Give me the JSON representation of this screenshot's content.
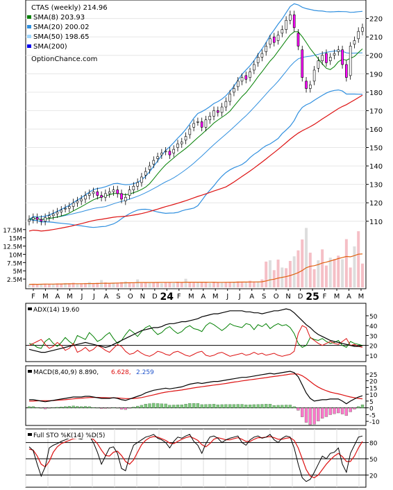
{
  "legend": {
    "title": "CTAS (weekly) 214.96",
    "sma8": "SMA(8) 203.93",
    "sma20": "SMA(20) 200.02",
    "sma50": "SMA(50) 198.65",
    "sma200": "SMA(200)",
    "brand": "OptionChance.com"
  },
  "colors": {
    "sma8": "#007f00",
    "sma20": "#2f8fdf",
    "sma50": "#9fd6ff",
    "sma200": "#0000ee",
    "bollinger": "#2f8fdf",
    "bollinger_mid": "#ffe400",
    "long_ma": "#dd1111",
    "up": "#000000",
    "down_fill": "#ff00ff",
    "up_fill": "#ffff00",
    "volume": "#f4b8c0",
    "volume_ma": "#e06010",
    "adx": "#000000",
    "di_plus": "#007f00",
    "di_minus": "#dd1111",
    "macd": "#000000",
    "signal": "#dd1111",
    "hist_pos": "#7fc77f",
    "hist_neg": "#ff77cc",
    "sto_k": "#000000",
    "sto_d": "#dd1111"
  },
  "panels": {
    "adx_label": "ADX(14) 19.60",
    "macd_label": "MACD(8,40,9) 8.890,",
    "macd_val2": "6.628,",
    "macd_val3": "2.259",
    "sto_label": "Full STO %K(14) %D(5)"
  },
  "chart_data": {
    "type": "candlestick",
    "price_ticks": [
      "110",
      "120",
      "130",
      "140",
      "150",
      "160",
      "170",
      "180",
      "190",
      "200",
      "210",
      "220"
    ],
    "volume_ticks": [
      "2.5M",
      "5M",
      "7.5M",
      "10M",
      "12.5M",
      "15M",
      "17.5M"
    ],
    "month_labels": [
      "F",
      "M",
      "A",
      "M",
      "J",
      "J",
      "A",
      "S",
      "O",
      "N",
      "D",
      "24",
      "F",
      "M",
      "A",
      "M",
      "J",
      "J",
      "A",
      "S",
      "O",
      "N",
      "D",
      "25",
      "F",
      "M",
      "A",
      "M"
    ],
    "adx_ticks": [
      "10",
      "20",
      "30",
      "40",
      "50"
    ],
    "macd_ticks": [
      "-10",
      "-5",
      "0",
      "5",
      "10",
      "15",
      "20",
      "25"
    ],
    "sto_ticks": [
      "20",
      "50",
      "80"
    ],
    "ylim": [
      102,
      227
    ],
    "close": [
      111,
      112,
      111,
      110,
      112,
      113,
      114,
      115,
      116,
      117,
      118,
      120,
      121,
      122,
      124,
      125,
      126,
      124,
      123,
      125,
      126,
      127,
      125,
      122,
      123,
      127,
      129,
      131,
      134,
      137,
      140,
      143,
      145,
      147,
      148,
      146,
      149,
      152,
      153,
      156,
      160,
      163,
      164,
      161,
      165,
      167,
      170,
      169,
      172,
      175,
      179,
      182,
      186,
      188,
      187,
      191,
      195,
      199,
      201,
      205,
      209,
      207,
      211,
      214,
      219,
      222,
      215,
      205,
      188,
      182,
      184,
      192,
      197,
      200,
      196,
      199,
      201,
      203,
      195,
      188,
      205,
      208,
      213,
      215
    ],
    "open": [
      110,
      111,
      112,
      111,
      110,
      112,
      113,
      114,
      115,
      117,
      117,
      118,
      120,
      121,
      122,
      124,
      125,
      126,
      124,
      123,
      125,
      126,
      127,
      125,
      121,
      124,
      127,
      129,
      131,
      135,
      138,
      141,
      144,
      146,
      148,
      148,
      147,
      150,
      152,
      154,
      157,
      161,
      164,
      164,
      161,
      165,
      167,
      170,
      169,
      172,
      175,
      180,
      183,
      186,
      189,
      188,
      192,
      196,
      199,
      202,
      206,
      210,
      208,
      212,
      214,
      219,
      222,
      212,
      203,
      186,
      182,
      186,
      193,
      197,
      201,
      197,
      200,
      202,
      203,
      195,
      189,
      206,
      209,
      213
    ],
    "volume": [
      0.9,
      1.0,
      0.9,
      1.0,
      1.1,
      1.0,
      1.0,
      1.2,
      1.1,
      1.3,
      1.2,
      1.4,
      1.1,
      1.2,
      1.3,
      1.6,
      1.2,
      1.4,
      2.2,
      1.5,
      1.3,
      1.4,
      1.4,
      1.6,
      1.8,
      1.5,
      1.2,
      2.4,
      1.3,
      1.4,
      1.3,
      1.5,
      1.4,
      1.2,
      1.5,
      1.6,
      1.3,
      1.7,
      1.6,
      2.6,
      1.5,
      1.4,
      1.5,
      1.6,
      1.5,
      1.3,
      1.5,
      1.6,
      1.4,
      1.5,
      1.7,
      1.6,
      1.8,
      1.6,
      1.5,
      2.0,
      1.7,
      1.8,
      2.4,
      7.8,
      8.2,
      5.2,
      8.4,
      6.0,
      5.8,
      8.0,
      9.4,
      11.2,
      14.5,
      18.0,
      10.5,
      5.5,
      8.2,
      11.5,
      6.6,
      9.0,
      8.6,
      9.6,
      8.5,
      14.6,
      6.0,
      12.4,
      17.0,
      7.2
    ],
    "adx": [
      16,
      15,
      14,
      13,
      13,
      14,
      15,
      16,
      17,
      18,
      19,
      20,
      21,
      22,
      23,
      22,
      21,
      20,
      19,
      18,
      19,
      21,
      23,
      25,
      27,
      29,
      31,
      33,
      35,
      36,
      37,
      38,
      38,
      39,
      41,
      42,
      42,
      43,
      44,
      44,
      45,
      46,
      47,
      49,
      50,
      51,
      52,
      52,
      53,
      54,
      55,
      55,
      55,
      55,
      54,
      54,
      53,
      53,
      52,
      53,
      54,
      55,
      55,
      56,
      57,
      56,
      53,
      49,
      45,
      41,
      38,
      34,
      31,
      29,
      27,
      25,
      24,
      23,
      22,
      21,
      20,
      19,
      19,
      19.6
    ],
    "di_plus": [
      22,
      21,
      18,
      17,
      24,
      27,
      22,
      19,
      23,
      28,
      24,
      21,
      30,
      28,
      26,
      33,
      29,
      24,
      26,
      30,
      33,
      27,
      22,
      25,
      31,
      36,
      33,
      29,
      34,
      38,
      40,
      35,
      31,
      33,
      37,
      39,
      35,
      32,
      34,
      38,
      40,
      37,
      36,
      34,
      40,
      43,
      41,
      38,
      35,
      38,
      42,
      40,
      39,
      38,
      42,
      41,
      36,
      41,
      39,
      42,
      37,
      40,
      42,
      40,
      41,
      38,
      32,
      22,
      18,
      20,
      28,
      26,
      25,
      27,
      24,
      22,
      23,
      25,
      20,
      18,
      24,
      22,
      21,
      20
    ],
    "di_minus": [
      20,
      22,
      24,
      26,
      21,
      17,
      19,
      23,
      20,
      15,
      17,
      22,
      13,
      15,
      18,
      14,
      16,
      20,
      18,
      15,
      13,
      17,
      21,
      19,
      14,
      11,
      12,
      15,
      12,
      10,
      9,
      11,
      14,
      13,
      11,
      10,
      13,
      14,
      12,
      10,
      9,
      11,
      13,
      14,
      10,
      9,
      10,
      12,
      13,
      11,
      9,
      10,
      11,
      12,
      10,
      11,
      13,
      11,
      12,
      10,
      11,
      12,
      10,
      9,
      10,
      11,
      14,
      32,
      40,
      38,
      28,
      25,
      22,
      20,
      22,
      24,
      22,
      21,
      24,
      27,
      20,
      21,
      19,
      18
    ],
    "macd": [
      6,
      6,
      5.5,
      5,
      4.5,
      5,
      5.5,
      6,
      6.5,
      7,
      7.5,
      8,
      8,
      8,
      8.5,
      8.5,
      8,
      7.5,
      7,
      7,
      7,
      7.5,
      7,
      6,
      5.5,
      6.5,
      7.5,
      8.5,
      9.5,
      11,
      12,
      13,
      13.5,
      14,
      14.5,
      14,
      14.5,
      15,
      15.5,
      16.5,
      17.5,
      18,
      18.5,
      18,
      18.5,
      19,
      19.5,
      19.5,
      20,
      20.5,
      21,
      21.5,
      22,
      22.5,
      22.5,
      23,
      23.5,
      24,
      24.5,
      25,
      25.5,
      25,
      25.5,
      26,
      26.5,
      27,
      26,
      23,
      17,
      11,
      7,
      5,
      5.5,
      6,
      6,
      6.5,
      6.5,
      6.5,
      5,
      3,
      5,
      6.5,
      8,
      8.9
    ],
    "signal": [
      5,
      5,
      5.2,
      5.3,
      5.3,
      5.3,
      5.4,
      5.6,
      5.8,
      6,
      6.3,
      6.6,
      6.9,
      7.1,
      7.4,
      7.6,
      7.7,
      7.7,
      7.6,
      7.5,
      7.4,
      7.4,
      7.3,
      7.1,
      6.8,
      6.8,
      6.9,
      7.2,
      7.6,
      8.2,
      8.9,
      9.6,
      10.3,
      11,
      11.6,
      12,
      12.4,
      12.8,
      13.2,
      13.7,
      14.2,
      14.7,
      15.2,
      15.6,
      16,
      16.4,
      16.8,
      17.2,
      17.6,
      18,
      18.5,
      19,
      19.4,
      19.9,
      20.3,
      20.7,
      21.1,
      21.5,
      21.9,
      22.3,
      22.8,
      23.2,
      23.6,
      24,
      24.4,
      24.9,
      25.1,
      24.9,
      23.7,
      21.8,
      19.5,
      17.2,
      15.3,
      13.8,
      12.6,
      11.6,
      10.9,
      10.3,
      9.6,
      8.7,
      8,
      7.5,
      7,
      6.6
    ],
    "sto_k": [
      72,
      65,
      40,
      18,
      35,
      70,
      75,
      78,
      82,
      85,
      88,
      90,
      88,
      86,
      90,
      92,
      80,
      62,
      40,
      55,
      70,
      72,
      60,
      32,
      28,
      55,
      75,
      80,
      85,
      90,
      92,
      95,
      88,
      85,
      80,
      70,
      82,
      90,
      88,
      92,
      95,
      82,
      75,
      60,
      78,
      90,
      92,
      88,
      80,
      85,
      88,
      90,
      92,
      80,
      75,
      85,
      90,
      92,
      88,
      90,
      95,
      85,
      80,
      88,
      92,
      90,
      70,
      40,
      15,
      8,
      12,
      25,
      40,
      55,
      50,
      60,
      62,
      70,
      40,
      25,
      60,
      75,
      90,
      92
    ],
    "sto_d": [
      68,
      66,
      55,
      40,
      35,
      45,
      62,
      72,
      78,
      81,
      84,
      87,
      88,
      88,
      88,
      89,
      86,
      78,
      66,
      56,
      55,
      62,
      64,
      56,
      45,
      40,
      48,
      62,
      76,
      84,
      89,
      91,
      90,
      87,
      84,
      79,
      78,
      82,
      86,
      89,
      91,
      88,
      84,
      76,
      72,
      78,
      86,
      89,
      87,
      85,
      85,
      87,
      89,
      86,
      82,
      82,
      86,
      89,
      89,
      90,
      91,
      89,
      86,
      86,
      88,
      89,
      84,
      70,
      50,
      30,
      18,
      15,
      20,
      30,
      40,
      48,
      55,
      60,
      54,
      45,
      45,
      55,
      70,
      82
    ]
  }
}
